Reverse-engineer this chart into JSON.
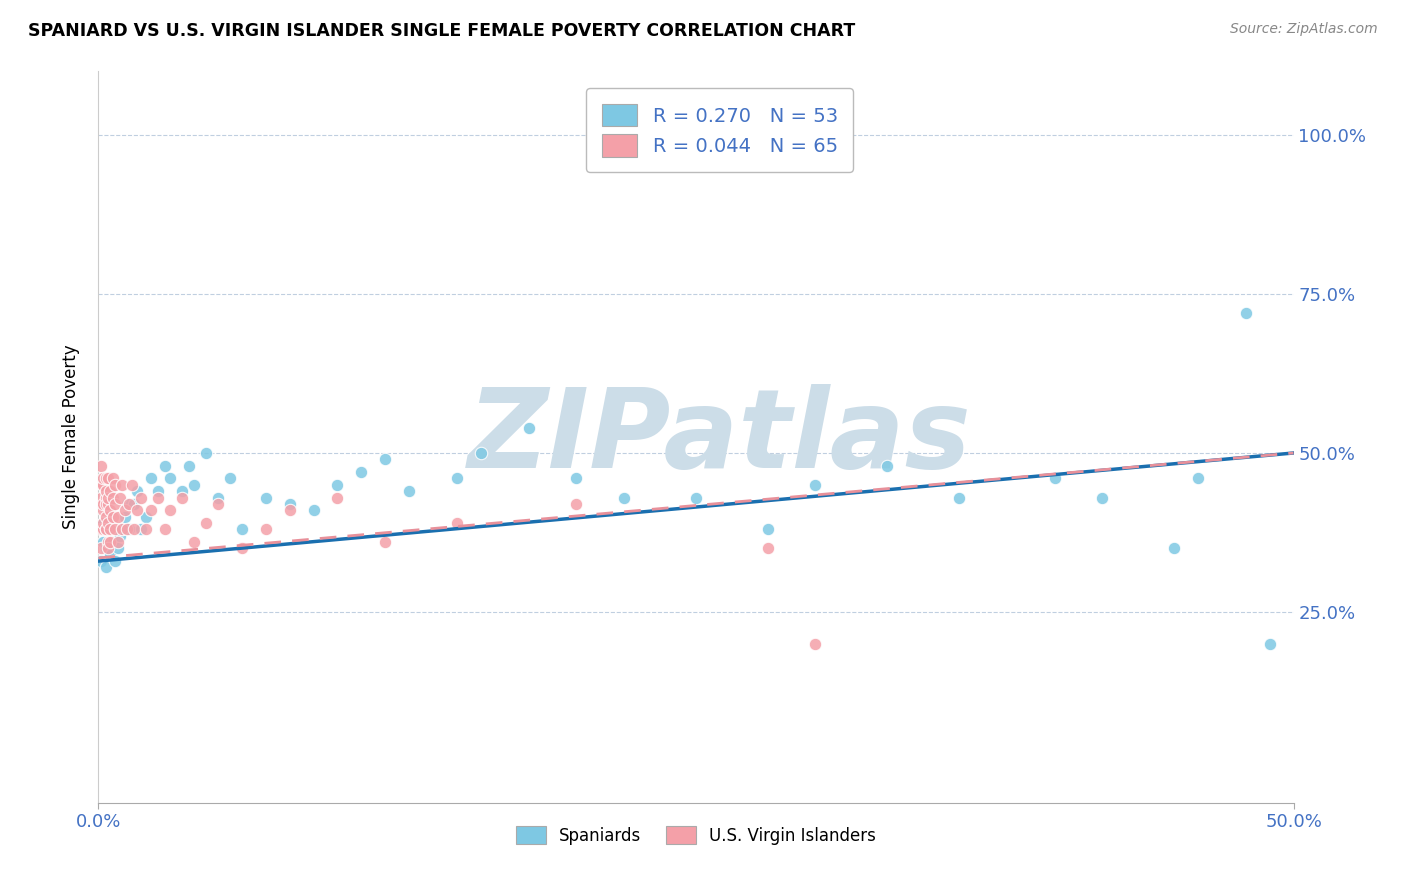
{
  "title": "SPANIARD VS U.S. VIRGIN ISLANDER SINGLE FEMALE POVERTY CORRELATION CHART",
  "source_text": "Source: ZipAtlas.com",
  "ylabel": "Single Female Poverty",
  "xlim": [
    0.0,
    0.5
  ],
  "ylim": [
    -0.05,
    1.1
  ],
  "xticks": [
    0.0,
    0.5
  ],
  "xticklabels": [
    "0.0%",
    "50.0%"
  ],
  "ytick_positions": [
    0.25,
    0.5,
    0.75,
    1.0
  ],
  "ytick_labels": [
    "25.0%",
    "50.0%",
    "75.0%",
    "100.0%"
  ],
  "spaniard_color": "#7ec8e3",
  "virgin_color": "#f4a0a8",
  "spaniard_line_color": "#1a6faf",
  "virgin_line_color": "#e8909a",
  "R_spaniard": 0.27,
  "N_spaniard": 53,
  "R_virgin": 0.044,
  "N_virgin": 65,
  "watermark": "ZIPatlas",
  "watermark_color": "#ccdde8",
  "legend_label_1": "Spaniards",
  "legend_label_2": "U.S. Virgin Islanders",
  "spaniard_trend_x0": 0.0,
  "spaniard_trend_y0": 0.33,
  "spaniard_trend_x1": 0.5,
  "spaniard_trend_y1": 0.5,
  "virgin_trend_x0": 0.0,
  "virgin_trend_y0": 0.335,
  "virgin_trend_x1": 0.5,
  "virgin_trend_y1": 0.5,
  "spaniards_x": [
    0.001,
    0.002,
    0.002,
    0.003,
    0.003,
    0.004,
    0.005,
    0.006,
    0.007,
    0.008,
    0.009,
    0.01,
    0.011,
    0.012,
    0.013,
    0.015,
    0.016,
    0.018,
    0.02,
    0.022,
    0.025,
    0.028,
    0.03,
    0.035,
    0.038,
    0.04,
    0.045,
    0.05,
    0.055,
    0.06,
    0.07,
    0.08,
    0.09,
    0.1,
    0.11,
    0.12,
    0.13,
    0.15,
    0.16,
    0.18,
    0.2,
    0.22,
    0.25,
    0.28,
    0.3,
    0.33,
    0.36,
    0.4,
    0.42,
    0.45,
    0.46,
    0.48,
    0.49
  ],
  "spaniards_y": [
    0.33,
    0.36,
    0.39,
    0.32,
    0.35,
    0.38,
    0.34,
    0.36,
    0.33,
    0.35,
    0.37,
    0.38,
    0.4,
    0.42,
    0.38,
    0.42,
    0.44,
    0.38,
    0.4,
    0.46,
    0.44,
    0.48,
    0.46,
    0.44,
    0.48,
    0.45,
    0.5,
    0.43,
    0.46,
    0.38,
    0.43,
    0.42,
    0.41,
    0.45,
    0.47,
    0.49,
    0.44,
    0.46,
    0.5,
    0.54,
    0.46,
    0.43,
    0.43,
    0.38,
    0.45,
    0.48,
    0.43,
    0.46,
    0.43,
    0.35,
    0.46,
    0.72,
    0.2
  ],
  "virgin_x": [
    0.001,
    0.001,
    0.001,
    0.001,
    0.001,
    0.002,
    0.002,
    0.002,
    0.002,
    0.002,
    0.002,
    0.002,
    0.003,
    0.003,
    0.003,
    0.003,
    0.003,
    0.003,
    0.003,
    0.004,
    0.004,
    0.004,
    0.004,
    0.004,
    0.004,
    0.005,
    0.005,
    0.005,
    0.005,
    0.006,
    0.006,
    0.006,
    0.007,
    0.007,
    0.007,
    0.008,
    0.008,
    0.009,
    0.01,
    0.01,
    0.011,
    0.012,
    0.013,
    0.014,
    0.015,
    0.016,
    0.018,
    0.02,
    0.022,
    0.025,
    0.028,
    0.03,
    0.035,
    0.04,
    0.045,
    0.05,
    0.06,
    0.07,
    0.08,
    0.1,
    0.12,
    0.15,
    0.2,
    0.28,
    0.3
  ],
  "virgin_y": [
    0.48,
    0.42,
    0.38,
    0.43,
    0.35,
    0.45,
    0.41,
    0.38,
    0.45,
    0.42,
    0.39,
    0.46,
    0.38,
    0.43,
    0.46,
    0.4,
    0.42,
    0.38,
    0.44,
    0.36,
    0.42,
    0.39,
    0.43,
    0.46,
    0.35,
    0.38,
    0.41,
    0.44,
    0.36,
    0.4,
    0.43,
    0.46,
    0.38,
    0.42,
    0.45,
    0.36,
    0.4,
    0.43,
    0.38,
    0.45,
    0.41,
    0.38,
    0.42,
    0.45,
    0.38,
    0.41,
    0.43,
    0.38,
    0.41,
    0.43,
    0.38,
    0.41,
    0.43,
    0.36,
    0.39,
    0.42,
    0.35,
    0.38,
    0.41,
    0.43,
    0.36,
    0.39,
    0.42,
    0.35,
    0.2
  ]
}
